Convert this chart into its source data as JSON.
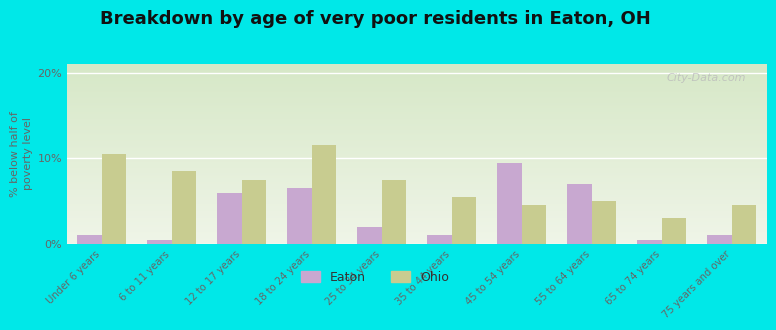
{
  "title": "Breakdown by age of very poor residents in Eaton, OH",
  "ylabel": "% below half of\npoverty level",
  "categories": [
    "Under 6 years",
    "6 to 11 years",
    "12 to 17 years",
    "18 to 24 years",
    "25 to 34 years",
    "35 to 44 years",
    "45 to 54 years",
    "55 to 64 years",
    "65 to 74 years",
    "75 years and over"
  ],
  "eaton_values": [
    1.0,
    0.5,
    6.0,
    6.5,
    2.0,
    1.0,
    9.5,
    7.0,
    0.5,
    1.0
  ],
  "ohio_values": [
    10.5,
    8.5,
    7.5,
    11.5,
    7.5,
    5.5,
    4.5,
    5.0,
    3.0,
    4.5
  ],
  "eaton_color": "#c8a8d0",
  "ohio_color": "#c8cc90",
  "background_outer": "#00e8e8",
  "background_plot_top": "#d8e8c8",
  "background_plot_bottom": "#f0f4e8",
  "title_fontsize": 13,
  "ylabel_fontsize": 8,
  "bar_width": 0.35,
  "ylim": [
    0,
    21
  ],
  "yticks": [
    0,
    10,
    20
  ],
  "ytick_labels": [
    "0%",
    "10%",
    "20%"
  ],
  "watermark": "City-Data.com"
}
